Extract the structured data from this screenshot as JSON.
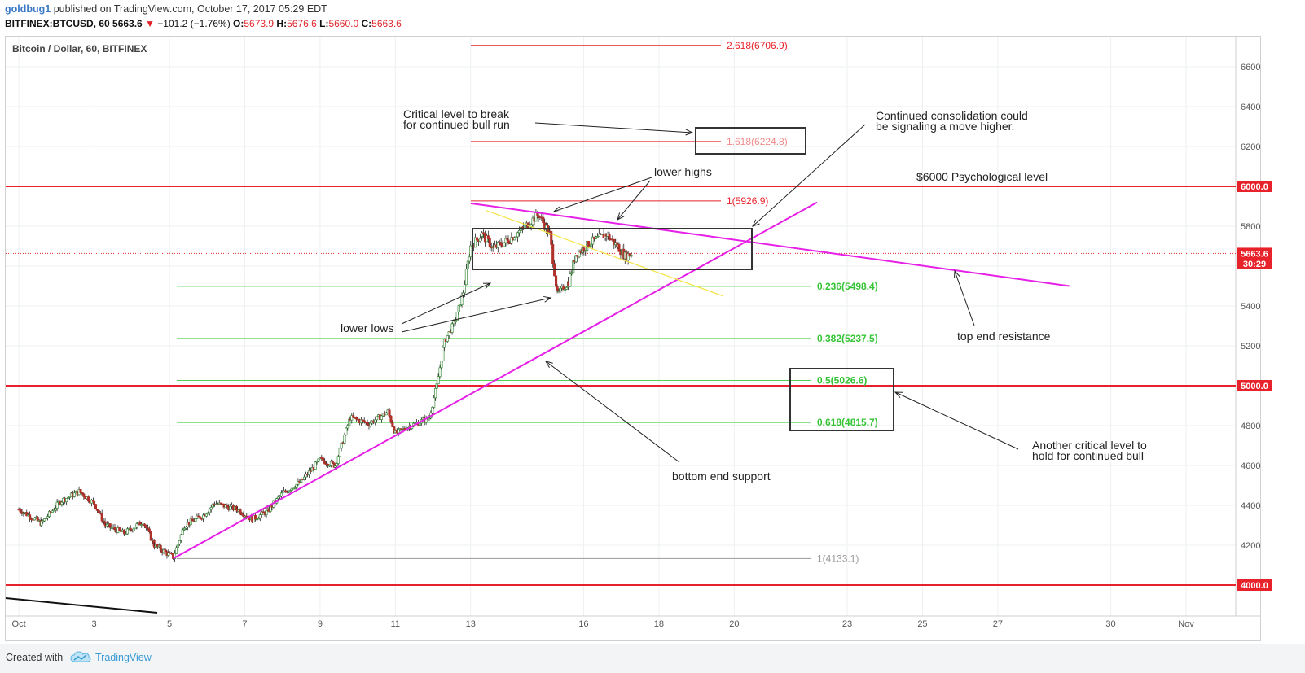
{
  "header": {
    "user": "goldbug1",
    "published": " published on TradingView.com, October 17, 2017 05:29 EDT",
    "symbol": "BITFINEX:BTCUSD, 60",
    "last": " 5663.6 ",
    "change_arrow": "▼",
    "change": " −101.2 (−1.76%) ",
    "open_label": "O:",
    "open": "5673.9",
    "high_label": " H:",
    "high": "5676.6",
    "low_label": " L:",
    "low": "5660.0",
    "close_label": " C:",
    "close": "5663.6"
  },
  "subtitle": "Bitcoin / Dollar, 60, BITFINEX",
  "footer": {
    "created_with": "Created with",
    "brand": "TradingView"
  },
  "colors": {
    "support_red": "#e8222a",
    "fib_green": "#52d152",
    "fib_ext_red": "#e8222a",
    "trend_magenta": "#e620e6",
    "minor_trend_yellow": "#f4e542",
    "candle_up": "#3c8a3c",
    "candle_down": "#b0312a"
  },
  "chart_data": {
    "type": "candlestick",
    "title": "Bitcoin / Dollar, 60, BITFINEX",
    "ylim": [
      3860,
      6750
    ],
    "y_ticks": [
      4200,
      4400,
      4600,
      4800,
      5000,
      5200,
      5400,
      5600,
      5800,
      6000,
      6200,
      6400,
      6600
    ],
    "x_ticks": [
      "Oct",
      "3",
      "5",
      "7",
      "9",
      "11",
      "13",
      "16",
      "18",
      "20",
      "23",
      "25",
      "27",
      "30",
      "Nov"
    ],
    "x_tick_days": [
      1,
      3,
      5,
      7,
      9,
      11,
      13,
      16,
      18,
      20,
      23,
      25,
      27,
      30,
      32
    ],
    "x_range_days": [
      1,
      33.2
    ],
    "price_tags": [
      {
        "value": 6000.0,
        "label": "6000.0",
        "color": "#e8222a"
      },
      {
        "value": 5000.0,
        "label": "5000.0",
        "color": "#e8222a"
      },
      {
        "value": 4000.0,
        "label": "4000.0",
        "color": "#e8222a"
      },
      {
        "value": 5663.6,
        "label": "5663.6",
        "color": "#e8222a"
      },
      {
        "value": 5613,
        "label": "30:29",
        "color": "#e8222a"
      }
    ],
    "current_price": 5663.6,
    "horizontal_levels": [
      6000,
      5000,
      4000
    ],
    "fib_retracement": [
      {
        "label": "0.236(5498.4)",
        "value": 5498.4,
        "color": "#52d152"
      },
      {
        "label": "0.382(5237.5)",
        "value": 5237.5,
        "color": "#52d152"
      },
      {
        "label": "0.5(5026.6)",
        "value": 5026.6,
        "color": "#52d152"
      },
      {
        "label": "0.618(4815.7)",
        "value": 4815.7,
        "color": "#52d152"
      },
      {
        "label": "1(4133.1)",
        "value": 4133.1,
        "color": "#9a9a9a"
      }
    ],
    "fib_extension": [
      {
        "label": "2.618(6706.9)",
        "value": 6706.9
      },
      {
        "label": "1.618(6224.8)",
        "value": 6224.8
      },
      {
        "label": "1(5926.9)",
        "value": 5926.9
      }
    ],
    "annotations": [
      {
        "text_lines": [
          "Critical level to break",
          "for continued bull run"
        ]
      },
      {
        "text_lines": [
          "Continued consolidation could",
          "be signaling a move higher."
        ]
      },
      {
        "text_lines": [
          "lower highs"
        ]
      },
      {
        "text_lines": [
          "$6000 Psychological level"
        ]
      },
      {
        "text_lines": [
          "lower lows"
        ]
      },
      {
        "text_lines": [
          "top end resistance"
        ]
      },
      {
        "text_lines": [
          "bottom end support"
        ]
      },
      {
        "text_lines": [
          "Another critical level to",
          "hold for continued bull"
        ]
      }
    ],
    "trendlines": [
      {
        "name": "support",
        "from": [
          5.1,
          4133
        ],
        "to": [
          22.2,
          5920
        ]
      },
      {
        "name": "resistance",
        "from": [
          13.0,
          5915
        ],
        "to": [
          28.9,
          5500
        ]
      },
      {
        "name": "minor",
        "from": [
          13.4,
          5880
        ],
        "to": [
          19.7,
          5450
        ]
      }
    ],
    "series_points": [
      [
        1.0,
        4380
      ],
      [
        1.6,
        4310
      ],
      [
        2.1,
        4420
      ],
      [
        2.6,
        4470
      ],
      [
        3.0,
        4410
      ],
      [
        3.3,
        4300
      ],
      [
        3.8,
        4260
      ],
      [
        4.3,
        4320
      ],
      [
        4.6,
        4200
      ],
      [
        5.1,
        4140
      ],
      [
        5.4,
        4300
      ],
      [
        5.9,
        4350
      ],
      [
        6.2,
        4410
      ],
      [
        6.8,
        4380
      ],
      [
        7.2,
        4330
      ],
      [
        7.6,
        4370
      ],
      [
        8.0,
        4460
      ],
      [
        8.5,
        4520
      ],
      [
        9.0,
        4630
      ],
      [
        9.4,
        4600
      ],
      [
        9.8,
        4840
      ],
      [
        10.3,
        4810
      ],
      [
        10.8,
        4870
      ],
      [
        11.0,
        4760
      ],
      [
        11.4,
        4800
      ],
      [
        11.9,
        4840
      ],
      [
        12.1,
        5000
      ],
      [
        12.3,
        5220
      ],
      [
        12.6,
        5330
      ],
      [
        12.8,
        5470
      ],
      [
        13.0,
        5700
      ],
      [
        13.3,
        5760
      ],
      [
        13.6,
        5690
      ],
      [
        14.0,
        5730
      ],
      [
        14.4,
        5790
      ],
      [
        14.8,
        5860
      ],
      [
        15.1,
        5760
      ],
      [
        15.3,
        5460
      ],
      [
        15.6,
        5520
      ],
      [
        15.8,
        5660
      ],
      [
        16.2,
        5720
      ],
      [
        16.6,
        5760
      ],
      [
        16.9,
        5700
      ],
      [
        17.1,
        5650
      ],
      [
        17.3,
        5663
      ]
    ]
  }
}
